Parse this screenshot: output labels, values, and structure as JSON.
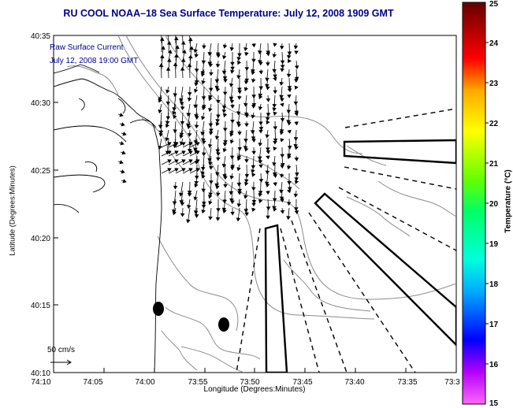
{
  "title": "RU COOL  NOAA–18  Sea Surface Temperature:  July 12, 2008 1909 GMT",
  "legend": {
    "line1": "Raw Surface Current",
    "line2": "July 12, 2008 19:00 GMT",
    "scale_label": "50 cm/s"
  },
  "axes": {
    "xlabel": "Longitude (Degrees:Minutes)",
    "ylabel": "Latitude (Degrees:Minutes)",
    "x_ticks": [
      "74:10",
      "74:05",
      "74:00",
      "73:55",
      "73:50",
      "73:45",
      "73:40",
      "73:35",
      "73:3"
    ],
    "y_ticks": [
      "40:35",
      "40:30",
      "40:25",
      "40:20",
      "40:15",
      "40:10"
    ]
  },
  "colorbar": {
    "label": "Temperature (°C)",
    "ticks": [
      "25",
      "24",
      "23",
      "22",
      "21",
      "20",
      "19",
      "18",
      "17",
      "16",
      "15"
    ],
    "range": [
      15,
      25
    ],
    "colors": [
      "#ff66ff",
      "#8800ff",
      "#0000ff",
      "#00aaff",
      "#00ffdd",
      "#00ff66",
      "#66ff00",
      "#ffff00",
      "#ffaa00",
      "#ff0000",
      "#660000"
    ]
  }
}
